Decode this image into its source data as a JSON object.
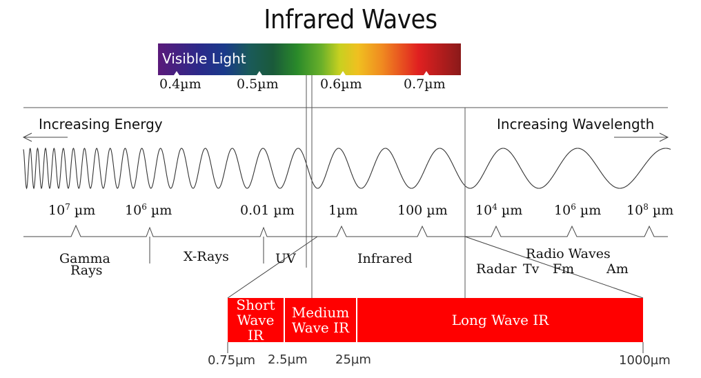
{
  "title": "Infrared Waves",
  "visible_light": {
    "label": "Visible Light",
    "ticks": [
      "0.4µm",
      "0.5µm",
      "0.6µm",
      "0.7µm"
    ]
  },
  "arrows": {
    "left": "Increasing Energy",
    "right": "Increasing Wavelength"
  },
  "scale_ticks": [
    {
      "base": "10",
      "exp": "7",
      "unit": "µm"
    },
    {
      "base": "10",
      "exp": "6",
      "unit": "µm"
    },
    {
      "base": "0.01",
      "exp": "",
      "unit": "µm"
    },
    {
      "base": "1",
      "exp": "",
      "unit": "µm"
    },
    {
      "base": "100",
      "exp": "",
      "unit": "µm"
    },
    {
      "base": "10",
      "exp": "4",
      "unit": "µm"
    },
    {
      "base": "10",
      "exp": "6",
      "unit": "µm"
    },
    {
      "base": "10",
      "exp": "8",
      "unit": "µm"
    }
  ],
  "regions": {
    "gamma_line1": "Gamma",
    "gamma_line2": "Rays",
    "xrays": "X-Rays",
    "uv": "UV",
    "infrared": "Infrared",
    "radio": "Radio Waves",
    "radar": "Radar",
    "tv": "Tv",
    "fm": "Fm",
    "am": "Am"
  },
  "ir_bands": [
    {
      "line1": "Short",
      "line2": "Wave IR"
    },
    {
      "line1": "Medium",
      "line2": "Wave IR"
    },
    {
      "line1": "Long Wave IR",
      "line2": ""
    }
  ],
  "ir_ticks": [
    "0.75µm",
    "2.5µm",
    "25µm",
    "1000µm"
  ]
}
